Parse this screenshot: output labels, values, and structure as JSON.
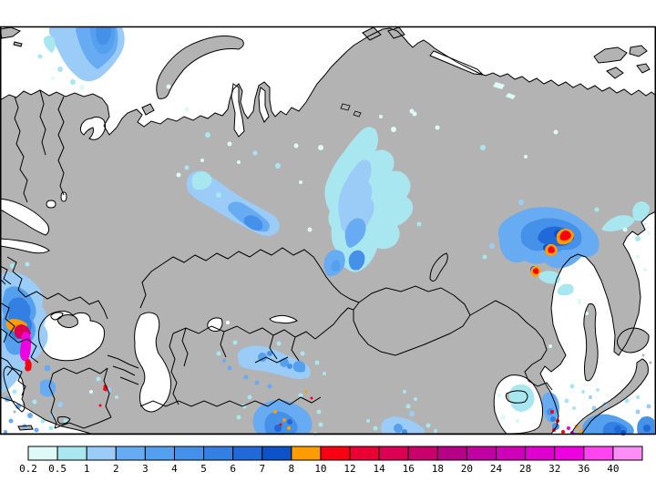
{
  "map": {
    "colors": {
      "land": "#b3b3b3",
      "ocean": "#ffffff",
      "outline": "#000000",
      "frame": "#000000"
    }
  },
  "colorbar": {
    "labels": [
      "0.2",
      "0.5",
      "1",
      "2",
      "3",
      "4",
      "5",
      "6",
      "7",
      "8",
      "10",
      "12",
      "14",
      "16",
      "18",
      "20",
      "24",
      "28",
      "32",
      "36",
      "40"
    ],
    "colors": [
      "#defaf6",
      "#a9e7f0",
      "#9bccf7",
      "#67abf3",
      "#55a0ee",
      "#4590e9",
      "#3480e2",
      "#2168d8",
      "#0d52c8",
      "#ff9c00",
      "#f90012",
      "#ea0034",
      "#db0051",
      "#ca006b",
      "#b60085",
      "#c000a0",
      "#cf00b8",
      "#df00cd",
      "#ef00e0",
      "#ff45f0",
      "#ff8df8"
    ]
  }
}
